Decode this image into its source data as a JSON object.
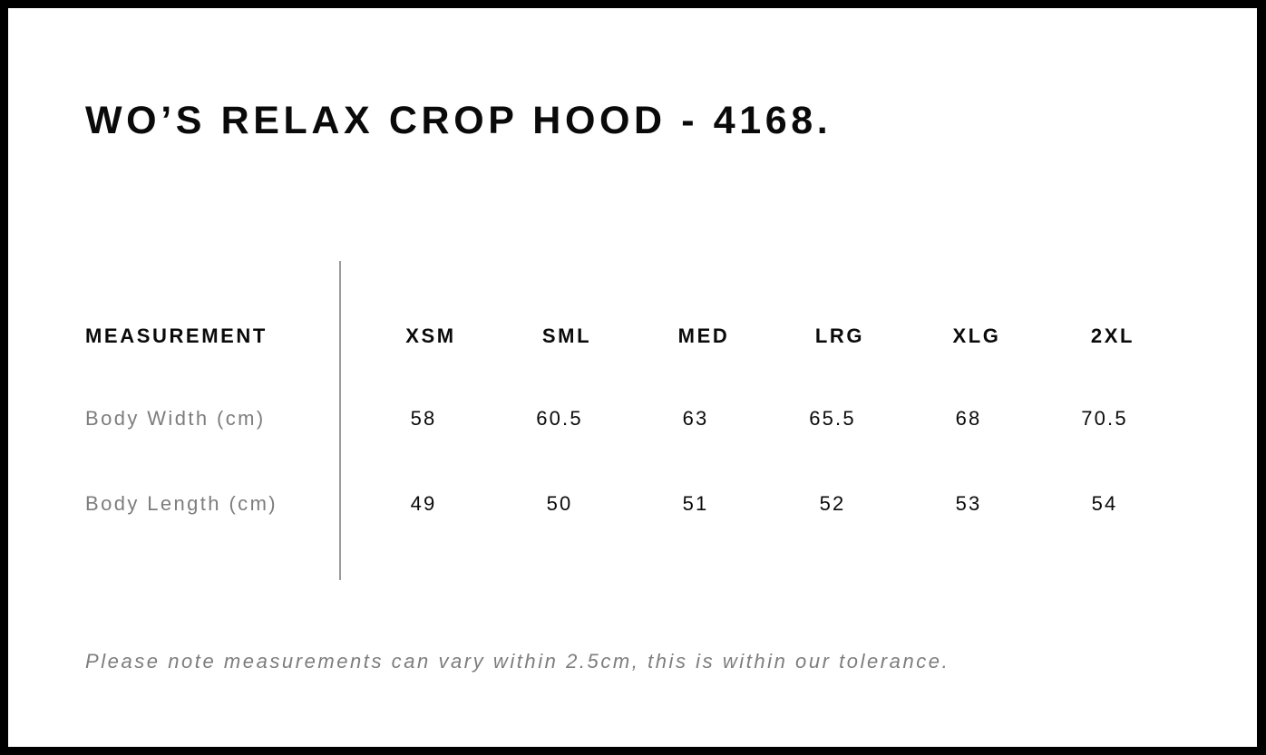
{
  "title": "WO’S RELAX CROP HOOD - 4168.",
  "table": {
    "header_label": "MEASUREMENT",
    "sizes": [
      "XSM",
      "SML",
      "MED",
      "LRG",
      "XLG",
      "2XL"
    ],
    "rows": [
      {
        "label": "Body Width (cm)",
        "values": [
          "58",
          "60.5",
          "63",
          "65.5",
          "68",
          "70.5"
        ]
      },
      {
        "label": "Body Length (cm)",
        "values": [
          "49",
          "50",
          "51",
          "52",
          "53",
          "54"
        ]
      }
    ]
  },
  "note": "Please note measurements can vary within 2.5cm, this is within our tolerance."
}
